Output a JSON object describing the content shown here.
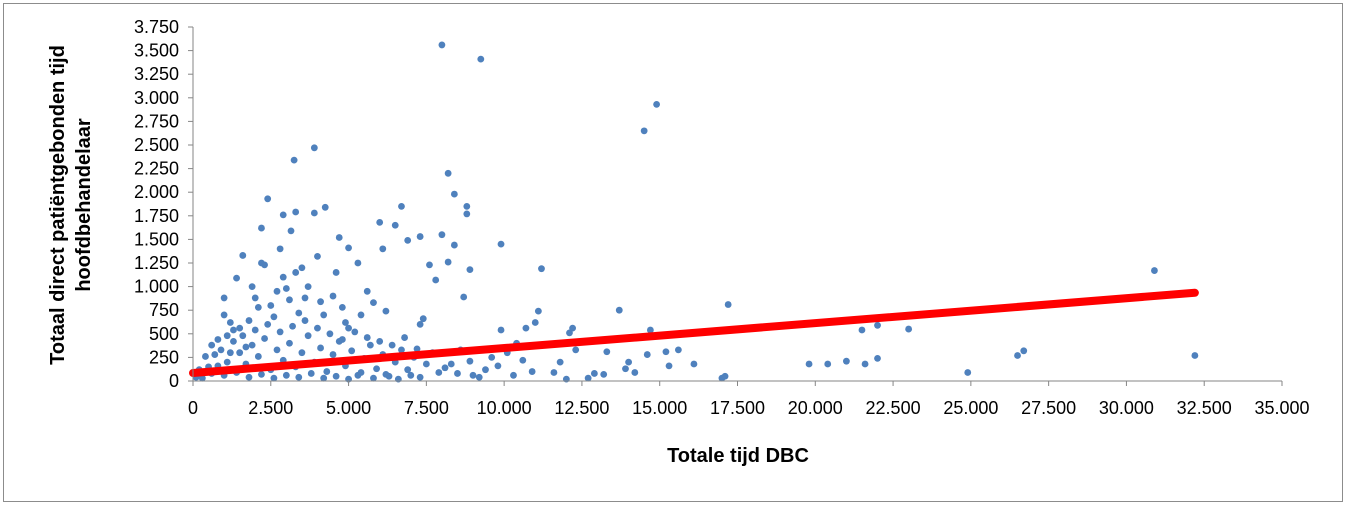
{
  "chart_data": {
    "type": "scatter",
    "title": "",
    "xlabel": "Totale tijd DBC",
    "ylabel_lines": [
      "Totaal direct patiëntgebonden tijd",
      "hoofdbehandelaar"
    ],
    "xlim": [
      0,
      35000
    ],
    "ylim": [
      0,
      3750
    ],
    "xticks": [
      0,
      2500,
      5000,
      7500,
      10000,
      12500,
      15000,
      17500,
      20000,
      22500,
      25000,
      27500,
      30000,
      32500,
      35000
    ],
    "xtick_labels": [
      "0",
      "2.500",
      "5.000",
      "7.500",
      "10.000",
      "12.500",
      "15.000",
      "17.500",
      "20.000",
      "22.500",
      "25.000",
      "27.500",
      "30.000",
      "32.500",
      "35.000"
    ],
    "yticks": [
      0,
      250,
      500,
      750,
      1000,
      1250,
      1500,
      1750,
      2000,
      2250,
      2500,
      2750,
      3000,
      3250,
      3500,
      3750
    ],
    "ytick_labels": [
      "0",
      "250",
      "500",
      "750",
      "1.000",
      "1.250",
      "1.500",
      "1.750",
      "2.000",
      "2.250",
      "2.500",
      "2.750",
      "3.000",
      "3.250",
      "3.500",
      "3.750"
    ],
    "grid": false,
    "legend": "none",
    "point_color": "#4f81bd",
    "trend_color": "#ff0000",
    "trendline": {
      "x": [
        0,
        32200
      ],
      "y": [
        85,
        935
      ]
    },
    "points": [
      [
        8000,
        3560
      ],
      [
        9250,
        3410
      ],
      [
        14900,
        2930
      ],
      [
        14500,
        2650
      ],
      [
        3250,
        2340
      ],
      [
        3900,
        2470
      ],
      [
        8200,
        2200
      ],
      [
        2400,
        1930
      ],
      [
        8400,
        1980
      ],
      [
        4250,
        1840
      ],
      [
        6700,
        1850
      ],
      [
        8800,
        1850
      ],
      [
        2900,
        1760
      ],
      [
        3300,
        1790
      ],
      [
        3900,
        1780
      ],
      [
        8800,
        1770
      ],
      [
        6000,
        1680
      ],
      [
        6500,
        1650
      ],
      [
        2200,
        1620
      ],
      [
        3150,
        1590
      ],
      [
        8000,
        1550
      ],
      [
        4700,
        1520
      ],
      [
        7300,
        1530
      ],
      [
        9900,
        1450
      ],
      [
        8400,
        1440
      ],
      [
        5000,
        1410
      ],
      [
        6900,
        1490
      ],
      [
        6100,
        1400
      ],
      [
        7600,
        1230
      ],
      [
        8200,
        1260
      ],
      [
        1600,
        1330
      ],
      [
        2200,
        1250
      ],
      [
        2300,
        1230
      ],
      [
        30900,
        1170
      ],
      [
        11200,
        1190
      ],
      [
        8900,
        1180
      ],
      [
        5300,
        1250
      ],
      [
        3500,
        1200
      ],
      [
        4000,
        1320
      ],
      [
        2800,
        1400
      ],
      [
        1400,
        1090
      ],
      [
        2900,
        1100
      ],
      [
        4600,
        1150
      ],
      [
        3300,
        1150
      ],
      [
        7800,
        1070
      ],
      [
        8700,
        890
      ],
      [
        5600,
        950
      ],
      [
        1000,
        880
      ],
      [
        1900,
        1000
      ],
      [
        3700,
        1000
      ],
      [
        17200,
        810
      ],
      [
        13700,
        750
      ],
      [
        21500,
        540
      ],
      [
        22000,
        590
      ],
      [
        23000,
        550
      ],
      [
        26700,
        320
      ],
      [
        26500,
        270
      ],
      [
        32200,
        270
      ],
      [
        24900,
        90
      ],
      [
        19800,
        180
      ],
      [
        20400,
        180
      ],
      [
        21000,
        210
      ],
      [
        21600,
        180
      ],
      [
        22000,
        240
      ],
      [
        15600,
        330
      ],
      [
        16100,
        180
      ],
      [
        15200,
        310
      ],
      [
        15300,
        160
      ],
      [
        14700,
        540
      ],
      [
        14200,
        90
      ],
      [
        14000,
        200
      ],
      [
        13300,
        310
      ],
      [
        13200,
        70
      ],
      [
        12200,
        560
      ],
      [
        12100,
        510
      ],
      [
        12300,
        330
      ],
      [
        11000,
        620
      ],
      [
        11100,
        740
      ],
      [
        10700,
        560
      ],
      [
        9900,
        540
      ],
      [
        10400,
        400
      ],
      [
        17000,
        30
      ],
      [
        17100,
        50
      ],
      [
        12900,
        80
      ],
      [
        12000,
        20
      ],
      [
        14600,
        280
      ],
      [
        13900,
        130
      ],
      [
        12700,
        30
      ],
      [
        11800,
        200
      ],
      [
        10900,
        100
      ],
      [
        10100,
        300
      ],
      [
        9600,
        250
      ],
      [
        9400,
        120
      ],
      [
        9000,
        60
      ],
      [
        8600,
        330
      ],
      [
        8300,
        180
      ],
      [
        7900,
        90
      ],
      [
        7400,
        660
      ],
      [
        7300,
        600
      ],
      [
        6200,
        740
      ],
      [
        5800,
        830
      ],
      [
        5400,
        700
      ],
      [
        4900,
        620
      ],
      [
        4500,
        900
      ],
      [
        4100,
        840
      ],
      [
        3600,
        880
      ],
      [
        3100,
        860
      ],
      [
        2700,
        950
      ],
      [
        2500,
        800
      ],
      [
        2100,
        780
      ],
      [
        1800,
        640
      ],
      [
        1500,
        560
      ],
      [
        1200,
        620
      ],
      [
        1000,
        700
      ],
      [
        800,
        440
      ],
      [
        600,
        380
      ],
      [
        400,
        260
      ],
      [
        200,
        120
      ],
      [
        100,
        40
      ],
      [
        300,
        30
      ],
      [
        500,
        150
      ],
      [
        700,
        280
      ],
      [
        900,
        330
      ],
      [
        1100,
        200
      ],
      [
        1300,
        420
      ],
      [
        1500,
        300
      ],
      [
        1700,
        180
      ],
      [
        1900,
        380
      ],
      [
        2100,
        260
      ],
      [
        2300,
        450
      ],
      [
        2500,
        120
      ],
      [
        2700,
        330
      ],
      [
        2900,
        220
      ],
      [
        3100,
        400
      ],
      [
        3300,
        150
      ],
      [
        3500,
        300
      ],
      [
        3700,
        480
      ],
      [
        3900,
        200
      ],
      [
        4100,
        350
      ],
      [
        4300,
        100
      ],
      [
        4500,
        280
      ],
      [
        4700,
        420
      ],
      [
        4900,
        160
      ],
      [
        5100,
        320
      ],
      [
        5300,
        60
      ],
      [
        5500,
        240
      ],
      [
        5700,
        380
      ],
      [
        5900,
        130
      ],
      [
        6100,
        280
      ],
      [
        6300,
        50
      ],
      [
        6500,
        200
      ],
      [
        6700,
        330
      ],
      [
        6900,
        120
      ],
      [
        7100,
        250
      ],
      [
        7300,
        40
      ],
      [
        7500,
        180
      ],
      [
        7700,
        300
      ],
      [
        8100,
        140
      ],
      [
        8500,
        80
      ],
      [
        8900,
        210
      ],
      [
        9200,
        40
      ],
      [
        9800,
        160
      ],
      [
        10300,
        60
      ],
      [
        10600,
        220
      ],
      [
        11400,
        380
      ],
      [
        11600,
        90
      ],
      [
        600,
        80
      ],
      [
        1000,
        60
      ],
      [
        1400,
        90
      ],
      [
        1800,
        40
      ],
      [
        2200,
        70
      ],
      [
        2600,
        30
      ],
      [
        3000,
        60
      ],
      [
        3400,
        40
      ],
      [
        3800,
        80
      ],
      [
        4200,
        30
      ],
      [
        4600,
        50
      ],
      [
        5000,
        20
      ],
      [
        5400,
        90
      ],
      [
        5800,
        30
      ],
      [
        6200,
        70
      ],
      [
        6600,
        20
      ],
      [
        7000,
        60
      ],
      [
        800,
        160
      ],
      [
        1200,
        300
      ],
      [
        1600,
        480
      ],
      [
        2000,
        540
      ],
      [
        2400,
        600
      ],
      [
        2800,
        520
      ],
      [
        3200,
        580
      ],
      [
        3600,
        640
      ],
      [
        4000,
        560
      ],
      [
        4400,
        500
      ],
      [
        4800,
        440
      ],
      [
        5200,
        520
      ],
      [
        5600,
        460
      ],
      [
        6000,
        420
      ],
      [
        6400,
        380
      ],
      [
        6800,
        460
      ],
      [
        7200,
        340
      ],
      [
        1100,
        480
      ],
      [
        1300,
        540
      ],
      [
        1700,
        360
      ],
      [
        2600,
        680
      ],
      [
        3400,
        720
      ],
      [
        4200,
        700
      ],
      [
        4800,
        780
      ],
      [
        5000,
        560
      ],
      [
        2000,
        880
      ],
      [
        3000,
        980
      ]
    ]
  }
}
